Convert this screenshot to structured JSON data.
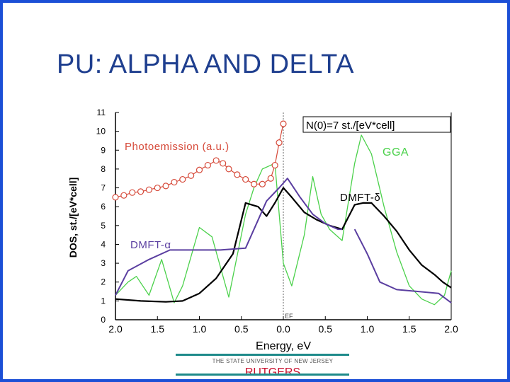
{
  "slide": {
    "title": "PU: ALPHA AND DELTA",
    "footer": {
      "university": "THE STATE UNIVERSITY OF NEW JERSEY",
      "logo_text": "RUTGERS"
    }
  },
  "chart_data": {
    "type": "line",
    "title": "",
    "xlabel": "Energy, eV",
    "ylabel": "DOS, st./[eV*cell]",
    "xlim": [
      -2.0,
      2.0
    ],
    "ylim": [
      0,
      11
    ],
    "x_tick_labels": [
      "2.0",
      "1.5",
      "1.0",
      "0.5",
      "0.0",
      "0.5",
      "1.0",
      "1.5",
      "2.0"
    ],
    "x_ticks": [
      -2.0,
      -1.5,
      -1.0,
      -0.5,
      0.0,
      0.5,
      1.0,
      1.5,
      2.0
    ],
    "y_ticks": [
      0,
      1,
      2,
      3,
      4,
      5,
      6,
      7,
      8,
      9,
      10,
      11
    ],
    "grid": false,
    "annotations": [
      {
        "text": "N(0)=7 st./[eV*cell]",
        "color": "#000000",
        "boxed": true
      },
      {
        "text": "EF",
        "color": "#444444"
      }
    ],
    "series": [
      {
        "name": "GGA",
        "color": "#4bd14b",
        "values": [
          [
            -2.0,
            1.3
          ],
          [
            -1.85,
            2.0
          ],
          [
            -1.75,
            2.3
          ],
          [
            -1.6,
            1.3
          ],
          [
            -1.45,
            3.2
          ],
          [
            -1.3,
            0.9
          ],
          [
            -1.2,
            1.8
          ],
          [
            -1.0,
            4.9
          ],
          [
            -0.85,
            4.4
          ],
          [
            -0.65,
            1.2
          ],
          [
            -0.45,
            5.6
          ],
          [
            -0.35,
            7.0
          ],
          [
            -0.25,
            8.0
          ],
          [
            -0.1,
            8.3
          ],
          [
            0.0,
            3.0
          ],
          [
            0.1,
            1.8
          ],
          [
            0.25,
            4.5
          ],
          [
            0.35,
            7.6
          ],
          [
            0.45,
            5.6
          ],
          [
            0.55,
            4.8
          ],
          [
            0.7,
            4.2
          ],
          [
            0.85,
            8.3
          ],
          [
            0.93,
            9.8
          ],
          [
            1.05,
            8.8
          ],
          [
            1.2,
            6.0
          ],
          [
            1.35,
            3.6
          ],
          [
            1.5,
            1.8
          ],
          [
            1.65,
            1.1
          ],
          [
            1.8,
            0.8
          ],
          [
            1.92,
            1.3
          ],
          [
            2.0,
            2.6
          ]
        ]
      },
      {
        "name": "DMFT-δ",
        "color": "#000000",
        "values": [
          [
            -2.0,
            1.1
          ],
          [
            -1.7,
            1.0
          ],
          [
            -1.4,
            0.95
          ],
          [
            -1.2,
            1.0
          ],
          [
            -1.0,
            1.4
          ],
          [
            -0.8,
            2.2
          ],
          [
            -0.6,
            3.5
          ],
          [
            -0.45,
            6.2
          ],
          [
            -0.3,
            6.0
          ],
          [
            -0.2,
            5.5
          ],
          [
            -0.1,
            6.2
          ],
          [
            0.0,
            7.0
          ],
          [
            0.1,
            6.5
          ],
          [
            0.25,
            5.7
          ],
          [
            0.4,
            5.3
          ],
          [
            0.55,
            5.0
          ],
          [
            0.7,
            4.8
          ],
          [
            0.85,
            6.1
          ],
          [
            0.95,
            6.2
          ],
          [
            1.05,
            6.2
          ],
          [
            1.2,
            5.5
          ],
          [
            1.35,
            4.7
          ],
          [
            1.5,
            3.7
          ],
          [
            1.65,
            2.9
          ],
          [
            1.8,
            2.4
          ],
          [
            1.9,
            2.0
          ],
          [
            2.0,
            1.7
          ]
        ]
      },
      {
        "name": "DMFT-α",
        "color": "#5a3ea0",
        "values": [
          [
            -2.0,
            1.3
          ],
          [
            -1.85,
            2.6
          ],
          [
            -1.6,
            3.2
          ],
          [
            -1.35,
            3.7
          ],
          [
            -1.0,
            3.7
          ],
          [
            -0.75,
            3.7
          ],
          [
            -0.45,
            3.8
          ],
          [
            -0.2,
            6.3
          ],
          [
            -0.05,
            7.0
          ],
          [
            0.05,
            7.5
          ],
          [
            0.2,
            6.5
          ],
          [
            0.35,
            5.6
          ],
          [
            0.5,
            5.1
          ],
          [
            0.65,
            4.8
          ],
          [
            0.7,
            4.8
          ],
          [
            null,
            null
          ],
          [
            0.85,
            4.8
          ],
          [
            1.0,
            3.5
          ],
          [
            1.15,
            2.0
          ],
          [
            1.35,
            1.6
          ],
          [
            1.6,
            1.5
          ],
          [
            1.85,
            1.4
          ],
          [
            2.0,
            0.9
          ]
        ]
      },
      {
        "name": "Photoemission (a.u.)",
        "color": "#d64a3a",
        "values": [
          [
            -2.0,
            6.5
          ],
          [
            -1.9,
            6.6
          ],
          [
            -1.8,
            6.75
          ],
          [
            -1.7,
            6.8
          ],
          [
            -1.6,
            6.9
          ],
          [
            -1.5,
            7.0
          ],
          [
            -1.4,
            7.1
          ],
          [
            -1.3,
            7.3
          ],
          [
            -1.2,
            7.45
          ],
          [
            -1.1,
            7.65
          ],
          [
            -1.0,
            7.95
          ],
          [
            -0.9,
            8.2
          ],
          [
            -0.8,
            8.45
          ],
          [
            -0.72,
            8.3
          ],
          [
            -0.65,
            8.0
          ],
          [
            -0.55,
            7.7
          ],
          [
            -0.45,
            7.45
          ],
          [
            -0.35,
            7.2
          ],
          [
            -0.25,
            7.2
          ],
          [
            -0.15,
            7.5
          ],
          [
            -0.1,
            8.2
          ],
          [
            -0.05,
            9.4
          ],
          [
            0.0,
            10.4
          ]
        ]
      }
    ],
    "legend": [
      {
        "label": "Photoemission (a.u.)",
        "color": "#d64a3a"
      },
      {
        "label": "GGA",
        "color": "#4bd14b"
      },
      {
        "label": "DMFT-δ",
        "color": "#000000"
      },
      {
        "label": "DMFT-α",
        "color": "#5a3ea0"
      }
    ]
  }
}
